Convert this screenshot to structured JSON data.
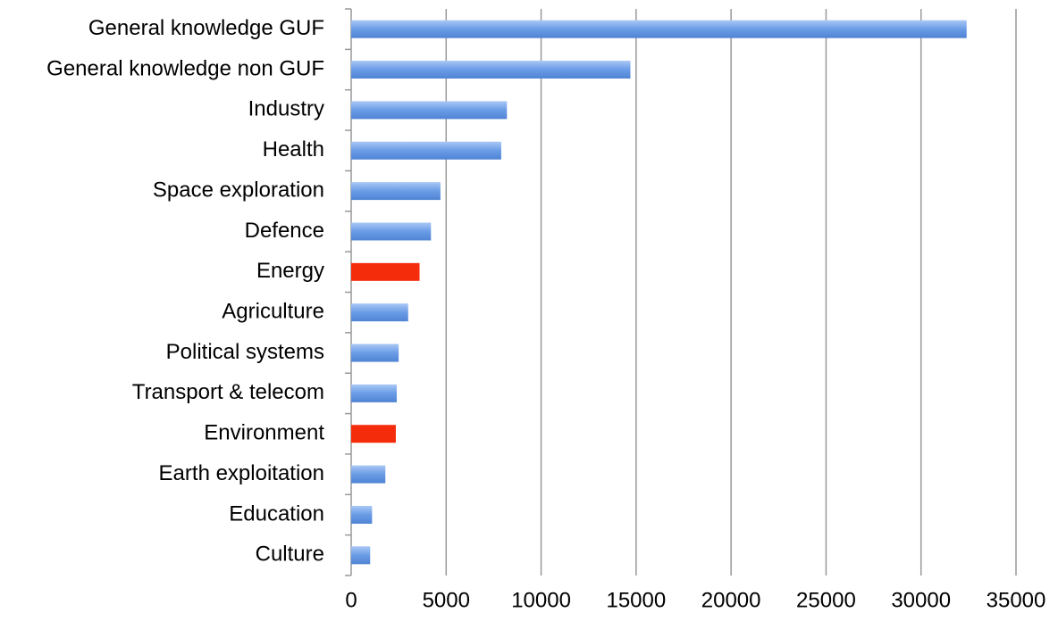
{
  "chart_data": {
    "type": "barh",
    "categories": [
      "General knowledge GUF",
      "General knowledge non GUF",
      "Industry",
      "Health",
      "Space exploration",
      "Defence",
      "Energy",
      "Agriculture",
      "Political systems",
      "Transport & telecom",
      "Environment",
      "Earth exploitation",
      "Education",
      "Culture"
    ],
    "values": [
      32400,
      14700,
      8200,
      7900,
      4700,
      4200,
      3600,
      3000,
      2500,
      2400,
      2350,
      1800,
      1100,
      1000
    ],
    "colors": [
      "#6a9ce6",
      "#6a9ce6",
      "#6a9ce6",
      "#6a9ce6",
      "#6a9ce6",
      "#6a9ce6",
      "#f52c0c",
      "#6a9ce6",
      "#6a9ce6",
      "#6a9ce6",
      "#f52c0c",
      "#6a9ce6",
      "#6a9ce6",
      "#6a9ce6"
    ],
    "xlim": [
      0,
      35000
    ],
    "xticks": [
      0,
      5000,
      10000,
      15000,
      20000,
      25000,
      30000,
      35000
    ],
    "grid": true
  }
}
